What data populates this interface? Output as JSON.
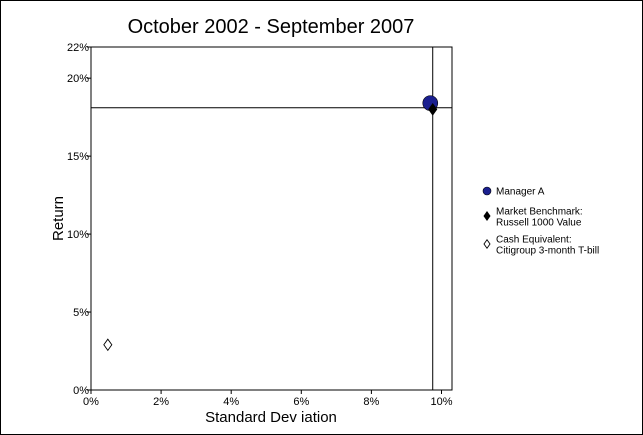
{
  "chart_data": {
    "type": "scatter",
    "title": "October 2002 - September 2007",
    "xlabel": "Standard Dev iation",
    "ylabel": "Return",
    "xlim": [
      0,
      10.3
    ],
    "ylim": [
      0,
      22
    ],
    "x_ticks": [
      0,
      2,
      4,
      6,
      8,
      10
    ],
    "x_tick_labels": [
      "0%",
      "2%",
      "4%",
      "6%",
      "8%",
      "10%"
    ],
    "y_ticks": [
      0,
      5,
      10,
      15,
      20,
      22
    ],
    "y_tick_labels": [
      "0%",
      "5%",
      "10%",
      "15%",
      "20%",
      "22%"
    ],
    "grid": false,
    "legend_position": "right",
    "reference_lines": {
      "x": 9.75,
      "y": 18.1
    },
    "series": [
      {
        "name": "Manager A",
        "x": 9.68,
        "y": 18.4,
        "marker": "circle",
        "color": "#1a1f8f"
      },
      {
        "name": "Market Benchmark:\nRussell 1000 Value",
        "x": 9.75,
        "y": 18.0,
        "marker": "diamond-filled",
        "color": "#000000"
      },
      {
        "name": "Cash Equivalent:\nCitigroup 3-month T-bill",
        "x": 0.48,
        "y": 2.9,
        "marker": "diamond-open",
        "color": "#000000"
      }
    ]
  }
}
